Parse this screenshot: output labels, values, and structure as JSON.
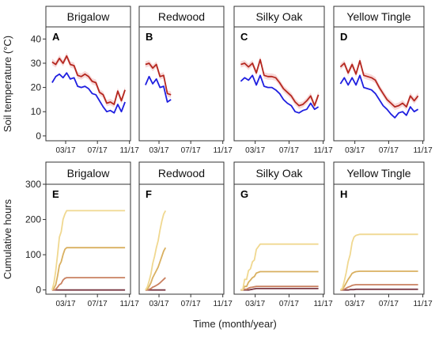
{
  "chart_data": {
    "type": "line",
    "xlabel": "Time (month/year)",
    "x_ticks": [
      "03/17",
      "07/17",
      "11/17"
    ],
    "rows": [
      {
        "ylabel": "Soil temperature (°C)",
        "ylim": [
          -2,
          45
        ],
        "y_ticks": [
          0,
          10,
          20,
          30,
          40
        ],
        "colors": [
          "#b5271f",
          "#1f1fe0"
        ],
        "band_color": "#f4c9c9",
        "panels": [
          {
            "strip": "Brigalow",
            "letter": "A",
            "x": [
              "2017-01-08",
              "2017-01-22",
              "2017-02-05",
              "2017-02-19",
              "2017-03-05",
              "2017-03-19",
              "2017-04-02",
              "2017-04-16",
              "2017-04-30",
              "2017-05-14",
              "2017-05-28",
              "2017-06-11",
              "2017-06-25",
              "2017-07-09",
              "2017-07-23",
              "2017-08-06",
              "2017-08-20",
              "2017-09-03",
              "2017-09-17",
              "2017-10-01",
              "2017-10-15"
            ],
            "series": [
              {
                "values": [
                  30.5,
                  29.5,
                  32.0,
                  30.0,
                  33.0,
                  29.5,
                  29.0,
                  25.0,
                  24.5,
                  25.5,
                  24.5,
                  22.5,
                  22.0,
                  18.0,
                  17.0,
                  13.5,
                  14.0,
                  13.0,
                  18.5,
                  14.5,
                  19.0
                ]
              },
              {
                "values": [
                  22.0,
                  24.5,
                  25.5,
                  24.0,
                  26.0,
                  23.5,
                  24.0,
                  20.5,
                  20.0,
                  20.5,
                  19.5,
                  17.5,
                  17.0,
                  14.5,
                  12.0,
                  10.0,
                  10.5,
                  9.5,
                  13.0,
                  10.0,
                  14.0
                ]
              }
            ]
          },
          {
            "strip": "Redwood",
            "letter": "B",
            "x": [
              "2017-01-08",
              "2017-01-22",
              "2017-02-05",
              "2017-02-19",
              "2017-03-05",
              "2017-03-19",
              "2017-04-02",
              "2017-04-16"
            ],
            "series": [
              {
                "values": [
                  29.5,
                  30.0,
                  28.0,
                  29.5,
                  24.5,
                  25.0,
                  17.5,
                  17.0
                ]
              },
              {
                "values": [
                  21.0,
                  24.5,
                  21.5,
                  23.5,
                  20.0,
                  20.5,
                  14.0,
                  15.0
                ]
              }
            ]
          },
          {
            "strip": "Silky Oak",
            "letter": "C",
            "x": [
              "2017-01-08",
              "2017-01-22",
              "2017-02-05",
              "2017-02-19",
              "2017-03-05",
              "2017-03-19",
              "2017-04-02",
              "2017-04-16",
              "2017-04-30",
              "2017-05-14",
              "2017-05-28",
              "2017-06-11",
              "2017-06-25",
              "2017-07-09",
              "2017-07-23",
              "2017-08-06",
              "2017-08-20",
              "2017-09-03",
              "2017-09-17",
              "2017-10-01",
              "2017-10-15"
            ],
            "series": [
              {
                "values": [
                  29.5,
                  30.0,
                  28.5,
                  30.0,
                  26.0,
                  31.5,
                  25.0,
                  24.5,
                  24.5,
                  24.0,
                  22.0,
                  19.5,
                  18.0,
                  16.5,
                  14.0,
                  12.5,
                  13.0,
                  14.5,
                  16.5,
                  12.5,
                  17.0
                ]
              },
              {
                "values": [
                  22.5,
                  24.0,
                  23.0,
                  25.0,
                  21.0,
                  25.0,
                  20.5,
                  20.0,
                  20.0,
                  19.0,
                  17.5,
                  15.0,
                  13.5,
                  12.5,
                  10.0,
                  9.5,
                  10.5,
                  11.0,
                  13.5,
                  11.0,
                  12.0
                ]
              }
            ]
          },
          {
            "strip": "Yellow Tingle",
            "letter": "D",
            "x": [
              "2017-01-08",
              "2017-01-22",
              "2017-02-05",
              "2017-02-19",
              "2017-03-05",
              "2017-03-19",
              "2017-04-02",
              "2017-04-16",
              "2017-04-30",
              "2017-05-14",
              "2017-05-28",
              "2017-06-11",
              "2017-06-25",
              "2017-07-09",
              "2017-07-23",
              "2017-08-06",
              "2017-08-20",
              "2017-09-03",
              "2017-09-17",
              "2017-10-01",
              "2017-10-15"
            ],
            "series": [
              {
                "values": [
                  28.5,
                  30.0,
                  26.0,
                  29.5,
                  25.5,
                  31.0,
                  25.0,
                  24.5,
                  24.0,
                  23.0,
                  20.0,
                  17.5,
                  15.0,
                  13.5,
                  12.0,
                  12.5,
                  13.5,
                  12.0,
                  16.5,
                  14.5,
                  16.5
                ]
              },
              {
                "values": [
                  21.5,
                  24.0,
                  21.0,
                  24.0,
                  21.0,
                  25.0,
                  20.0,
                  19.5,
                  19.0,
                  17.5,
                  15.0,
                  12.5,
                  11.0,
                  9.0,
                  7.5,
                  9.5,
                  10.0,
                  8.5,
                  12.0,
                  10.0,
                  11.0
                ]
              }
            ]
          }
        ]
      },
      {
        "ylabel": "Cumulative hours",
        "ylim": [
          -12,
          300
        ],
        "y_ticks": [
          0,
          100,
          200,
          300
        ],
        "colors": [
          "#f0d890",
          "#d9b060",
          "#c98060",
          "#7b3a46"
        ],
        "panels": [
          {
            "strip": "Brigalow",
            "letter": "E",
            "x": [
              "2017-01-08",
              "2017-01-15",
              "2017-01-22",
              "2017-01-29",
              "2017-02-05",
              "2017-02-12",
              "2017-02-19",
              "2017-02-26",
              "2017-03-05",
              "2017-03-12",
              "2017-03-19",
              "2017-04-02",
              "2017-10-15"
            ],
            "series": [
              {
                "values": [
                  0,
                  20,
                  55,
                  100,
                  150,
                  165,
                  200,
                  215,
                  225,
                  225,
                  225,
                  225,
                  225
                ]
              },
              {
                "values": [
                  0,
                  5,
                  15,
                  40,
                  70,
                  80,
                  100,
                  115,
                  120,
                  120,
                  120,
                  120,
                  120
                ]
              },
              {
                "values": [
                  0,
                  0,
                  2,
                  8,
                  15,
                  18,
                  28,
                  33,
                  35,
                  35,
                  35,
                  35,
                  35
                ]
              },
              {
                "values": [
                  0,
                  0,
                  0,
                  0,
                  0,
                  0,
                  0,
                  0,
                  0,
                  0,
                  0,
                  0,
                  0
                ]
              }
            ]
          },
          {
            "strip": "Redwood",
            "letter": "F",
            "x": [
              "2017-01-08",
              "2017-01-15",
              "2017-01-22",
              "2017-01-29",
              "2017-02-05",
              "2017-02-12",
              "2017-02-19",
              "2017-02-26",
              "2017-03-05",
              "2017-03-12",
              "2017-03-19",
              "2017-03-26"
            ],
            "series": [
              {
                "values": [
                  0,
                  8,
                  25,
                  45,
                  75,
                  95,
                  120,
                  140,
                  170,
                  195,
                  215,
                  225
                ]
              },
              {
                "values": [
                  0,
                  3,
                  10,
                  20,
                  35,
                  45,
                  55,
                  65,
                  80,
                  95,
                  110,
                  120
                ]
              },
              {
                "values": [
                  0,
                  0,
                  2,
                  4,
                  8,
                  10,
                  13,
                  16,
                  20,
                  25,
                  30,
                  35
                ]
              },
              {
                "values": [
                  0,
                  0,
                  0,
                  0,
                  0,
                  0,
                  0,
                  0,
                  0,
                  0,
                  0,
                  0
                ]
              }
            ]
          },
          {
            "strip": "Silky Oak",
            "letter": "G",
            "x": [
              "2017-01-08",
              "2017-01-15",
              "2017-01-22",
              "2017-01-29",
              "2017-02-05",
              "2017-02-12",
              "2017-02-19",
              "2017-02-26",
              "2017-03-05",
              "2017-03-19",
              "2017-04-02",
              "2017-10-15"
            ],
            "series": [
              {
                "values": [
                  0,
                  0,
                  30,
                  30,
                  55,
                  60,
                  80,
                  85,
                  115,
                  130,
                  130,
                  130
                ]
              },
              {
                "values": [
                  0,
                  0,
                  10,
                  10,
                  22,
                  28,
                  35,
                  38,
                  48,
                  52,
                  52,
                  52
                ]
              },
              {
                "values": [
                  0,
                  0,
                  2,
                  2,
                  5,
                  7,
                  8,
                  9,
                  10,
                  10,
                  10,
                  10
                ]
              },
              {
                "values": [
                  0,
                  0,
                  0,
                  0,
                  0,
                  1,
                  2,
                  3,
                  4,
                  4,
                  4,
                  4
                ]
              }
            ]
          },
          {
            "strip": "Yellow Tingle",
            "letter": "H",
            "x": [
              "2017-01-08",
              "2017-01-15",
              "2017-01-22",
              "2017-01-29",
              "2017-02-05",
              "2017-02-12",
              "2017-02-19",
              "2017-02-26",
              "2017-03-05",
              "2017-03-19",
              "2017-04-02",
              "2017-10-15"
            ],
            "series": [
              {
                "values": [
                  0,
                  5,
                  25,
                  50,
                  80,
                  100,
                  135,
                  150,
                  155,
                  158,
                  158,
                  158
                ]
              },
              {
                "values": [
                  0,
                  2,
                  10,
                  20,
                  30,
                  38,
                  47,
                  50,
                  52,
                  53,
                  53,
                  53
                ]
              },
              {
                "values": [
                  0,
                  0,
                  2,
                  5,
                  8,
                  10,
                  13,
                  14,
                  15,
                  15,
                  15,
                  15
                ]
              },
              {
                "values": [
                  0,
                  0,
                  0,
                  0,
                  0,
                  1,
                  1,
                  1,
                  2,
                  2,
                  2,
                  2
                ]
              }
            ]
          }
        ]
      }
    ]
  }
}
